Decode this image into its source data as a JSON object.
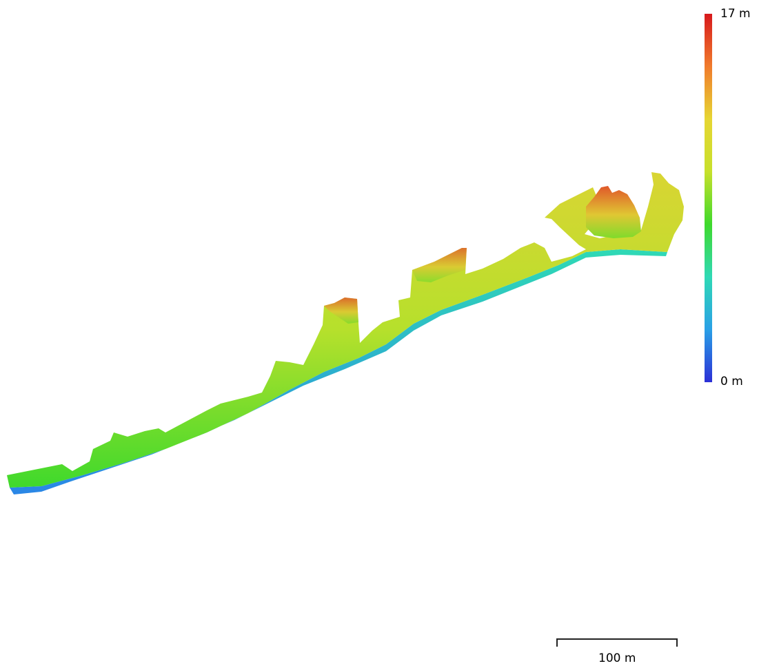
{
  "legend": {
    "max_label": "17 m",
    "min_label": "0 m",
    "colors": [
      "#d7191c",
      "#f07b2c",
      "#e6d633",
      "#c7e02c",
      "#3fd92c",
      "#2fd9b5",
      "#2aa0e6",
      "#2b2fd6"
    ]
  },
  "scale": {
    "label": "100 m"
  }
}
